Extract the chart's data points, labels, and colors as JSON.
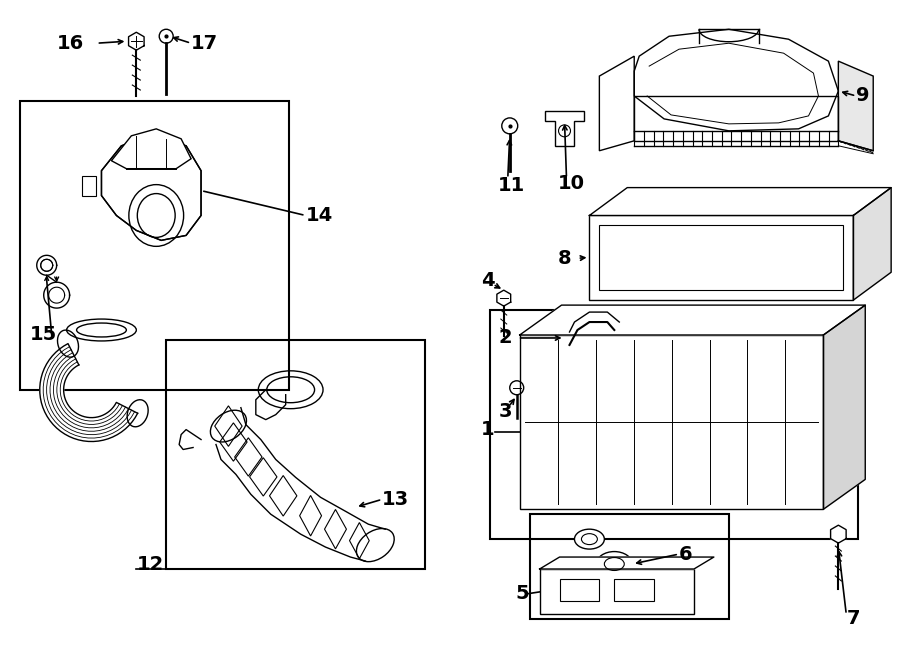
{
  "bg_color": "#ffffff",
  "lc": "#000000",
  "lw": 1.0,
  "figsize": [
    9.0,
    6.62
  ],
  "dpi": 100,
  "parts_labels": [
    "1",
    "2",
    "3",
    "4",
    "5",
    "6",
    "7",
    "8",
    "9",
    "10",
    "11",
    "12",
    "13",
    "14",
    "15",
    "16",
    "17"
  ]
}
